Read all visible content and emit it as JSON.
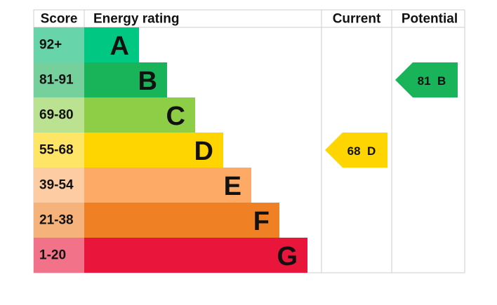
{
  "header": {
    "score": "Score",
    "energy_rating": "Energy rating",
    "current": "Current",
    "potential": "Potential"
  },
  "rows": [
    {
      "score": "92+",
      "letter": "A",
      "color": "#00c781",
      "score_color": "#67d4a9"
    },
    {
      "score": "81-91",
      "letter": "B",
      "color": "#19b459",
      "score_color": "#75d09b"
    },
    {
      "score": "69-80",
      "letter": "C",
      "color": "#8dce46",
      "score_color": "#bbe290"
    },
    {
      "score": "55-68",
      "letter": "D",
      "color": "#ffd500",
      "score_color": "#ffe566"
    },
    {
      "score": "39-54",
      "letter": "E",
      "color": "#fcaa65",
      "score_color": "#fdcca3"
    },
    {
      "score": "21-38",
      "letter": "F",
      "color": "#ef8023",
      "score_color": "#f5b37b"
    },
    {
      "score": "1-20",
      "letter": "G",
      "color": "#e9153b",
      "score_color": "#f27389"
    }
  ],
  "current": {
    "value": 68,
    "rating": "D"
  },
  "potential": {
    "value": 81,
    "rating": "B"
  }
}
